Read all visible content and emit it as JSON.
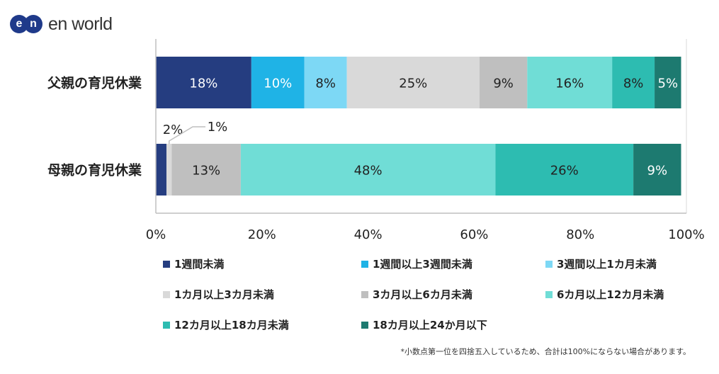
{
  "brand": {
    "mark_left": "e",
    "mark_right": "n",
    "name": "en world",
    "color": "#1f3a8a"
  },
  "chart_data": {
    "type": "bar",
    "orientation": "horizontal",
    "stacked": true,
    "categories": [
      "父親の育児休業",
      "母親の育児休業"
    ],
    "series": [
      {
        "name": "1週間未満",
        "color": "#253d80",
        "values": [
          18,
          2
        ],
        "labels": [
          "18%",
          "2%"
        ]
      },
      {
        "name": "1週間以上3週間未満",
        "color": "#1fb3e6",
        "values": [
          10,
          0
        ],
        "labels": [
          "10%",
          ""
        ]
      },
      {
        "name": "3週間以上1カ月未満",
        "color": "#7dd8f5",
        "values": [
          8,
          0
        ],
        "labels": [
          "8%",
          ""
        ]
      },
      {
        "name": "1カ月以上3カ月未満",
        "color": "#d9d9d9",
        "values": [
          25,
          1
        ],
        "labels": [
          "25%",
          "1%"
        ]
      },
      {
        "name": "3カ月以上6カ月未満",
        "color": "#bfbfbf",
        "values": [
          9,
          13
        ],
        "labels": [
          "9%",
          "13%"
        ]
      },
      {
        "name": "6カ月以上12カ月未満",
        "color": "#70ddd6",
        "values": [
          16,
          48
        ],
        "labels": [
          "16%",
          "48%"
        ]
      },
      {
        "name": "12カ月以上18カ月未満",
        "color": "#2dbcb1",
        "values": [
          8,
          26
        ],
        "labels": [
          "8%",
          "26%"
        ]
      },
      {
        "name": "18カ月以上24か月以下",
        "color": "#1d7a70",
        "values": [
          5,
          9
        ],
        "labels": [
          "5%",
          "9%"
        ]
      }
    ],
    "xlim": [
      0,
      100
    ],
    "x_ticks": [
      "0%",
      "20%",
      "40%",
      "60%",
      "80%",
      "100%"
    ],
    "legend_position": "bottom"
  },
  "footnote": "*小数点第一位を四捨五入しているため、合計は100%にならない場合があります。"
}
